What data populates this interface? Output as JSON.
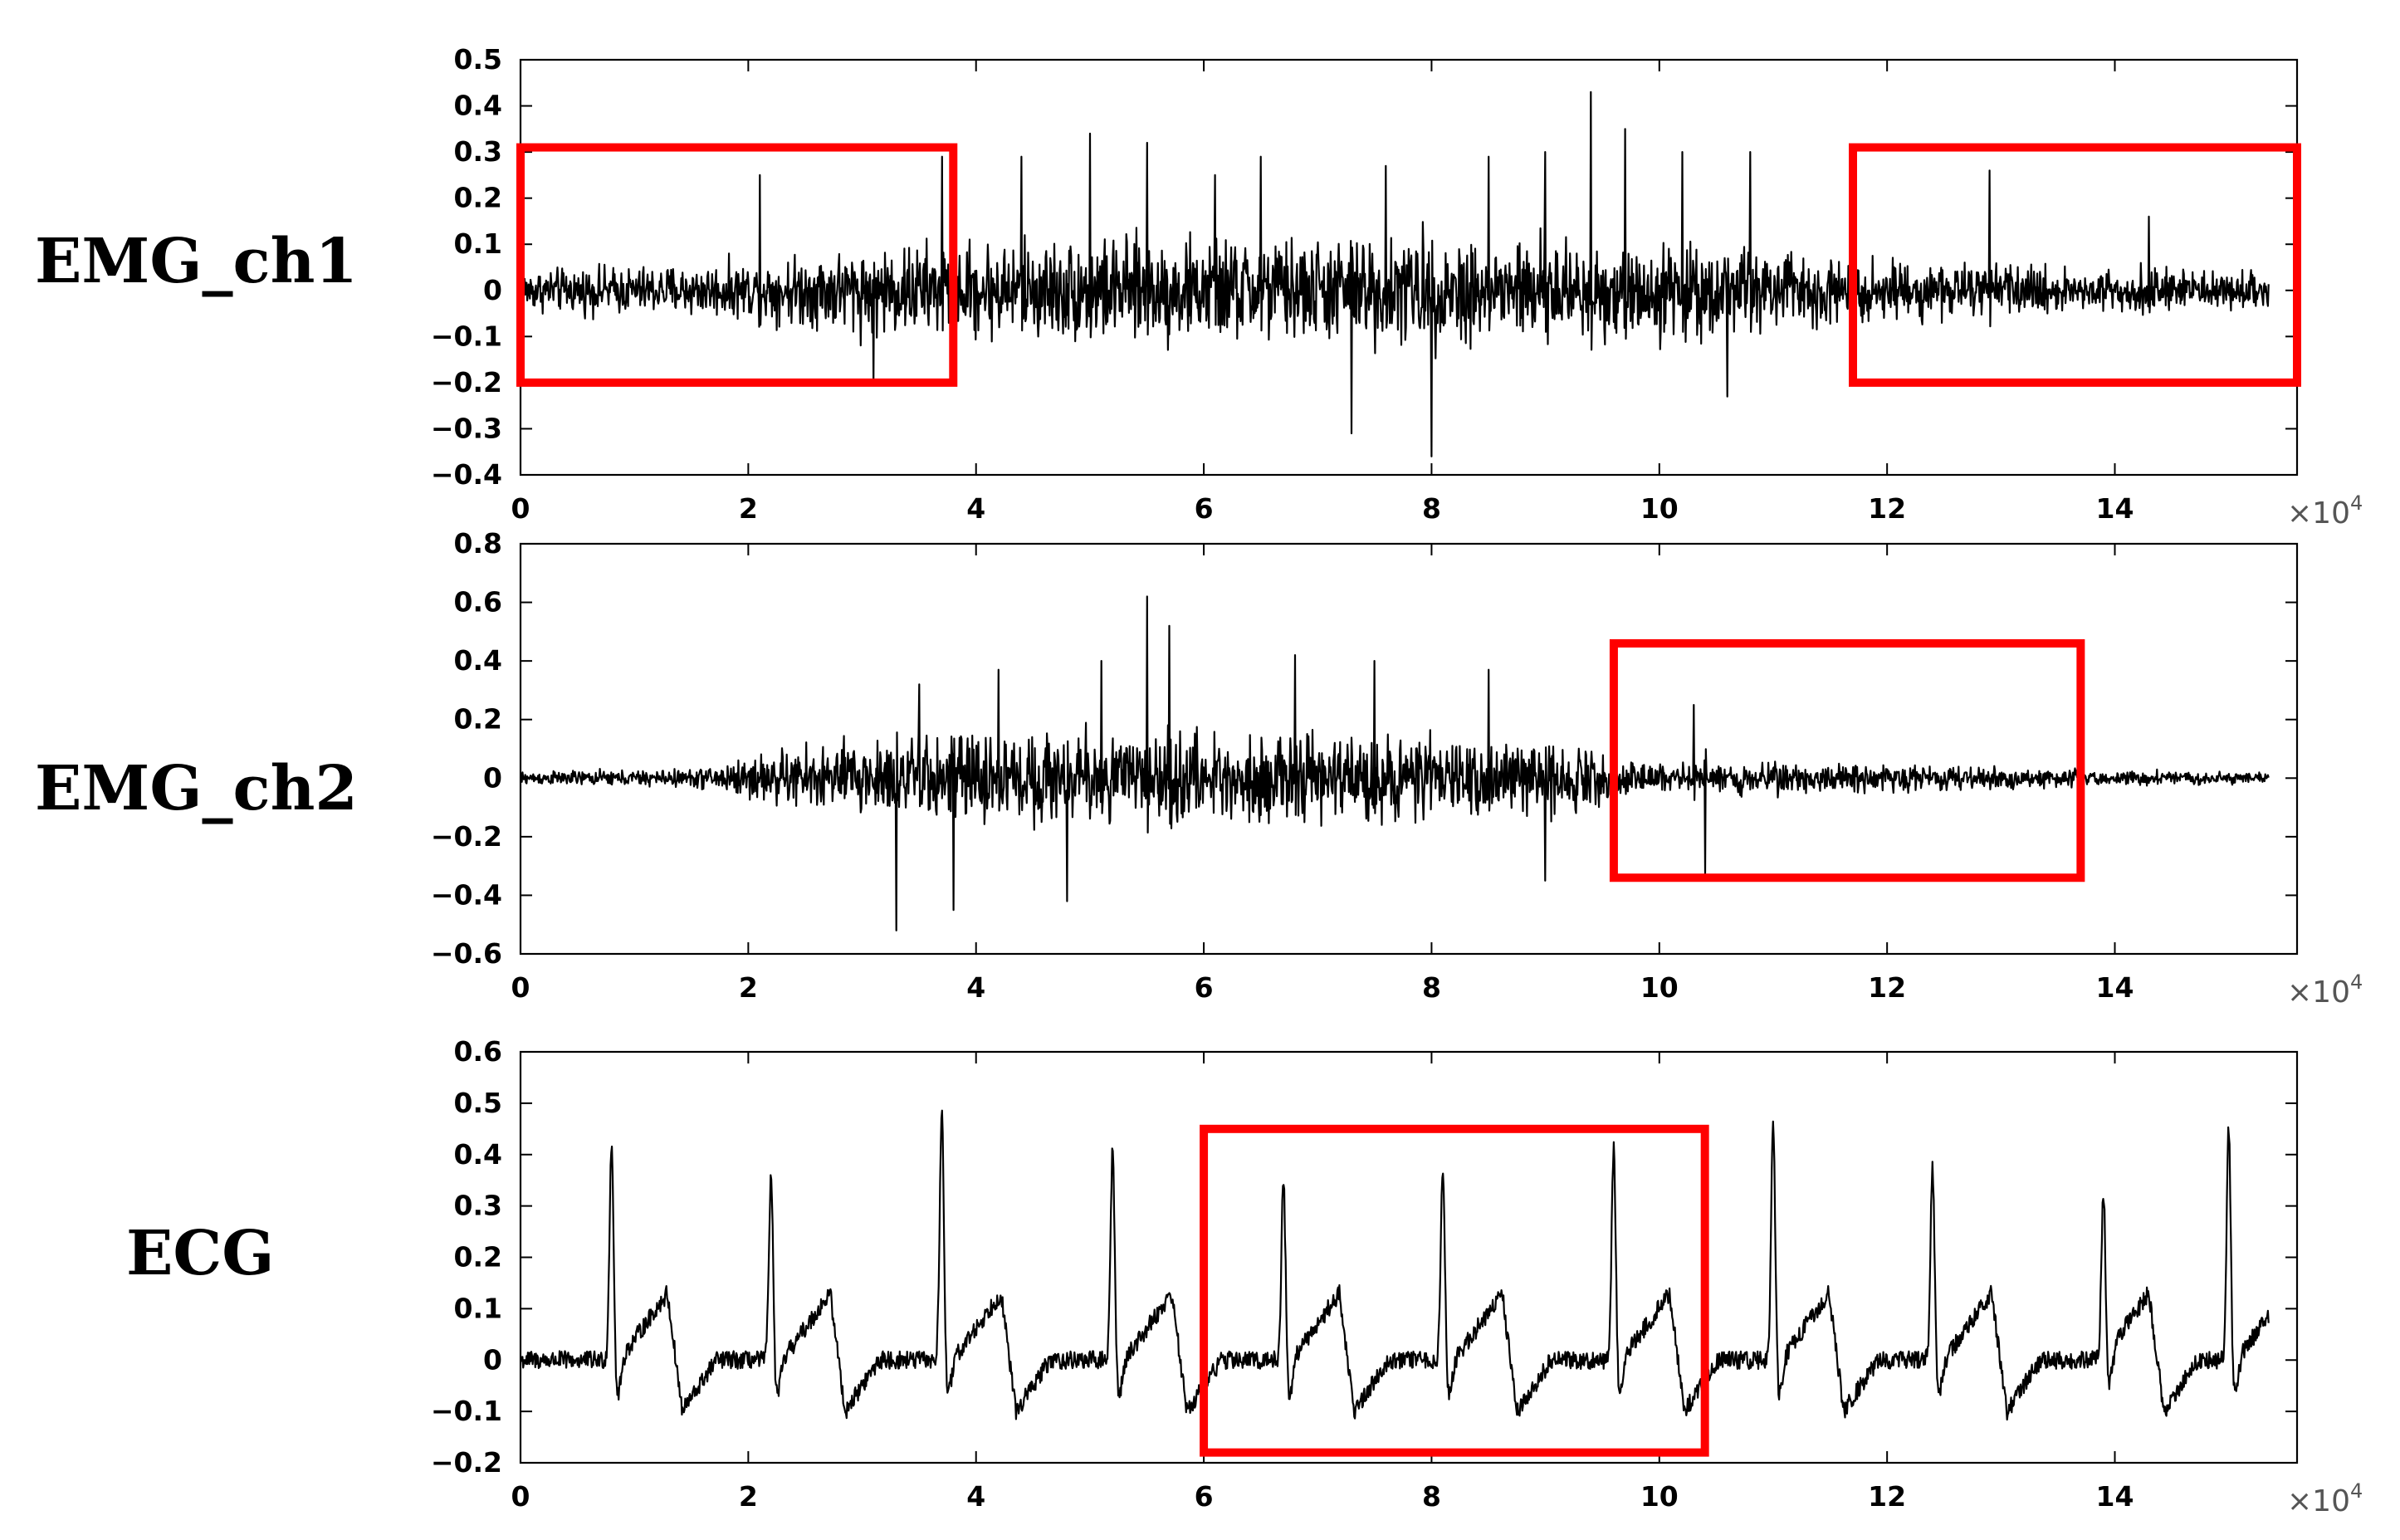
{
  "chart_data": [
    {
      "type": "line",
      "row_label": "EMG_ch1",
      "xlim": [
        0,
        15.6
      ],
      "x_scale_exponent_label": "×10",
      "x_scale_exponent": "4",
      "x_ticks": [
        0,
        2,
        4,
        6,
        8,
        10,
        12,
        14
      ],
      "x_tick_labels": [
        "0",
        "2",
        "4",
        "6",
        "8",
        "10",
        "12",
        "14"
      ],
      "ylim": [
        -0.4,
        0.5
      ],
      "y_ticks": [
        0.5,
        0.4,
        0.3,
        0.2,
        0.1,
        0,
        -0.1,
        -0.2,
        -0.3,
        -0.4
      ],
      "y_tick_labels": [
        "0.5",
        "0.4",
        "0.3",
        "0.2",
        "0.1",
        "0",
        "−0.1",
        "−0.2",
        "−0.3",
        "−0.4"
      ],
      "signal": {
        "kind": "emg",
        "envelope": [
          [
            0,
            0.06
          ],
          [
            2.0,
            0.08
          ],
          [
            3.0,
            0.13
          ],
          [
            3.8,
            0.14
          ],
          [
            5.0,
            0.15
          ],
          [
            6.0,
            0.15
          ],
          [
            7.0,
            0.15
          ],
          [
            8.0,
            0.16
          ],
          [
            9.0,
            0.15
          ],
          [
            10.0,
            0.14
          ],
          [
            11.0,
            0.12
          ],
          [
            11.8,
            0.09
          ],
          [
            13.0,
            0.07
          ],
          [
            14.5,
            0.06
          ],
          [
            15.3,
            0.05
          ]
        ],
        "peaks": [
          [
            2.1,
            0.25
          ],
          [
            3.1,
            -0.2
          ],
          [
            3.7,
            0.29
          ],
          [
            4.4,
            0.29
          ],
          [
            5.0,
            0.34
          ],
          [
            5.5,
            0.32
          ],
          [
            6.1,
            0.25
          ],
          [
            6.5,
            0.29
          ],
          [
            7.3,
            -0.31
          ],
          [
            7.6,
            0.27
          ],
          [
            8.0,
            -0.36
          ],
          [
            8.5,
            0.29
          ],
          [
            9.0,
            0.3
          ],
          [
            9.4,
            0.43
          ],
          [
            9.7,
            0.35
          ],
          [
            10.2,
            0.3
          ],
          [
            10.6,
            -0.23
          ],
          [
            10.8,
            0.3
          ],
          [
            12.9,
            0.26
          ],
          [
            14.3,
            0.16
          ]
        ]
      },
      "highlights": [
        {
          "x": [
            0,
            3.8
          ],
          "y": [
            -0.2,
            0.31
          ],
          "color": "#ff0000"
        },
        {
          "x": [
            11.7,
            15.6
          ],
          "y": [
            -0.2,
            0.31
          ],
          "color": "#ff0000"
        }
      ]
    },
    {
      "type": "line",
      "row_label": "EMG_ch2",
      "xlim": [
        0,
        15.6
      ],
      "x_scale_exponent_label": "×10",
      "x_scale_exponent": "4",
      "x_ticks": [
        0,
        2,
        4,
        6,
        8,
        10,
        12,
        14
      ],
      "x_tick_labels": [
        "0",
        "2",
        "4",
        "6",
        "8",
        "10",
        "12",
        "14"
      ],
      "ylim": [
        -0.6,
        0.8
      ],
      "y_ticks": [
        0.8,
        0.6,
        0.4,
        0.2,
        0,
        -0.2,
        -0.4,
        -0.6
      ],
      "y_tick_labels": [
        "0.8",
        "0.6",
        "0.4",
        "0.2",
        "0",
        "−0.2",
        "−0.4",
        "−0.6"
      ],
      "signal": {
        "kind": "emg",
        "envelope": [
          [
            0,
            0.03
          ],
          [
            1.5,
            0.04
          ],
          [
            2.2,
            0.12
          ],
          [
            3.0,
            0.18
          ],
          [
            4.0,
            0.2
          ],
          [
            5.0,
            0.21
          ],
          [
            6.0,
            0.2
          ],
          [
            7.0,
            0.19
          ],
          [
            8.0,
            0.18
          ],
          [
            9.0,
            0.16
          ],
          [
            9.4,
            0.14
          ],
          [
            9.6,
            0.07
          ],
          [
            11.0,
            0.07
          ],
          [
            13.0,
            0.05
          ],
          [
            14.5,
            0.03
          ],
          [
            15.3,
            0.03
          ]
        ],
        "peaks": [
          [
            3.3,
            -0.52
          ],
          [
            3.5,
            0.32
          ],
          [
            3.8,
            -0.45
          ],
          [
            4.2,
            0.37
          ],
          [
            4.8,
            -0.42
          ],
          [
            5.1,
            0.4
          ],
          [
            5.5,
            0.62
          ],
          [
            5.7,
            0.52
          ],
          [
            6.8,
            0.42
          ],
          [
            7.5,
            0.4
          ],
          [
            8.5,
            0.37
          ],
          [
            9.0,
            -0.35
          ],
          [
            9.6,
            0.24
          ],
          [
            10.3,
            0.25
          ],
          [
            10.4,
            -0.33
          ]
        ]
      },
      "highlights": [
        {
          "x": [
            9.6,
            13.7
          ],
          "y": [
            -0.34,
            0.46
          ],
          "color": "#ff0000"
        }
      ]
    },
    {
      "type": "line",
      "row_label": "ECG",
      "xlim": [
        0,
        15.6
      ],
      "x_scale_exponent_label": "×10",
      "x_scale_exponent": "4",
      "x_ticks": [
        0,
        2,
        4,
        6,
        8,
        10,
        12,
        14
      ],
      "x_tick_labels": [
        "0",
        "2",
        "4",
        "6",
        "8",
        "10",
        "12",
        "14"
      ],
      "ylim": [
        -0.2,
        0.6
      ],
      "y_ticks": [
        0.6,
        0.5,
        0.4,
        0.3,
        0.2,
        0.1,
        0,
        -0.1,
        -0.2
      ],
      "y_tick_labels": [
        "0.6",
        "0.5",
        "0.4",
        "0.3",
        "0.2",
        "0.1",
        "0",
        "−0.1",
        "−0.2"
      ],
      "signal": {
        "kind": "ecg",
        "r_peaks": [
          [
            0.8,
            0.44
          ],
          [
            2.2,
            0.38
          ],
          [
            3.7,
            0.51
          ],
          [
            5.2,
            0.43
          ],
          [
            6.7,
            0.37
          ],
          [
            8.1,
            0.39
          ],
          [
            9.6,
            0.43
          ],
          [
            11.0,
            0.48
          ],
          [
            12.4,
            0.39
          ],
          [
            13.9,
            0.34
          ],
          [
            15.0,
            0.47
          ]
        ],
        "baseline": 0.0,
        "t_wave_height": 0.13,
        "trough": -0.1
      },
      "highlights": [
        {
          "x": [
            6.0,
            10.4
          ],
          "y": [
            -0.18,
            0.45
          ],
          "color": "#ff0000"
        }
      ]
    }
  ]
}
